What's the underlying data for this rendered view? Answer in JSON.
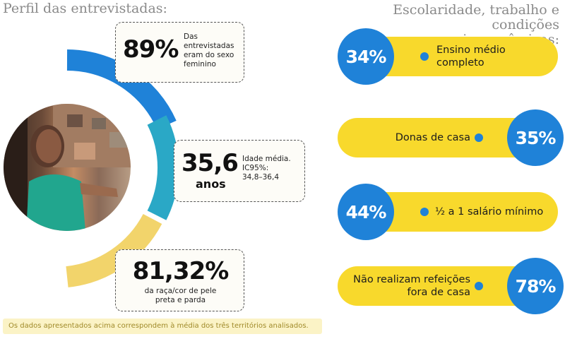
{
  "left_heading": "Perfil das entrevistadas:",
  "right_heading": {
    "line1": "Escolaridade, trabalho e condições",
    "line2": "socioeconômicas:"
  },
  "colors": {
    "blue": "#1f82d8",
    "teal": "#2aa8c6",
    "yellow": "#f8d92c",
    "pale_yellow": "#f2d46b"
  },
  "profile": [
    {
      "value": "89%",
      "desc": "Das entrevistadas eram do sexo feminino"
    },
    {
      "value": "35,6",
      "unit": "anos",
      "desc_line1": "Idade média.",
      "desc_line2": "IC95%:",
      "desc_line3": "34,8–36,4"
    },
    {
      "value": "81,32%",
      "desc_line1": "da raça/cor de pele",
      "desc_line2": "preta e parda"
    }
  ],
  "stats": [
    {
      "value": "34%",
      "label": "Ensino médio completo"
    },
    {
      "value": "35%",
      "label": "Donas de casa"
    },
    {
      "value": "44%",
      "label": "½ a 1 salário mínimo"
    },
    {
      "value": "78%",
      "label": "Não realizam refeições fora de casa"
    }
  ],
  "footnote": "Os dados apresentados acima correspondem à média dos três territórios analisados."
}
